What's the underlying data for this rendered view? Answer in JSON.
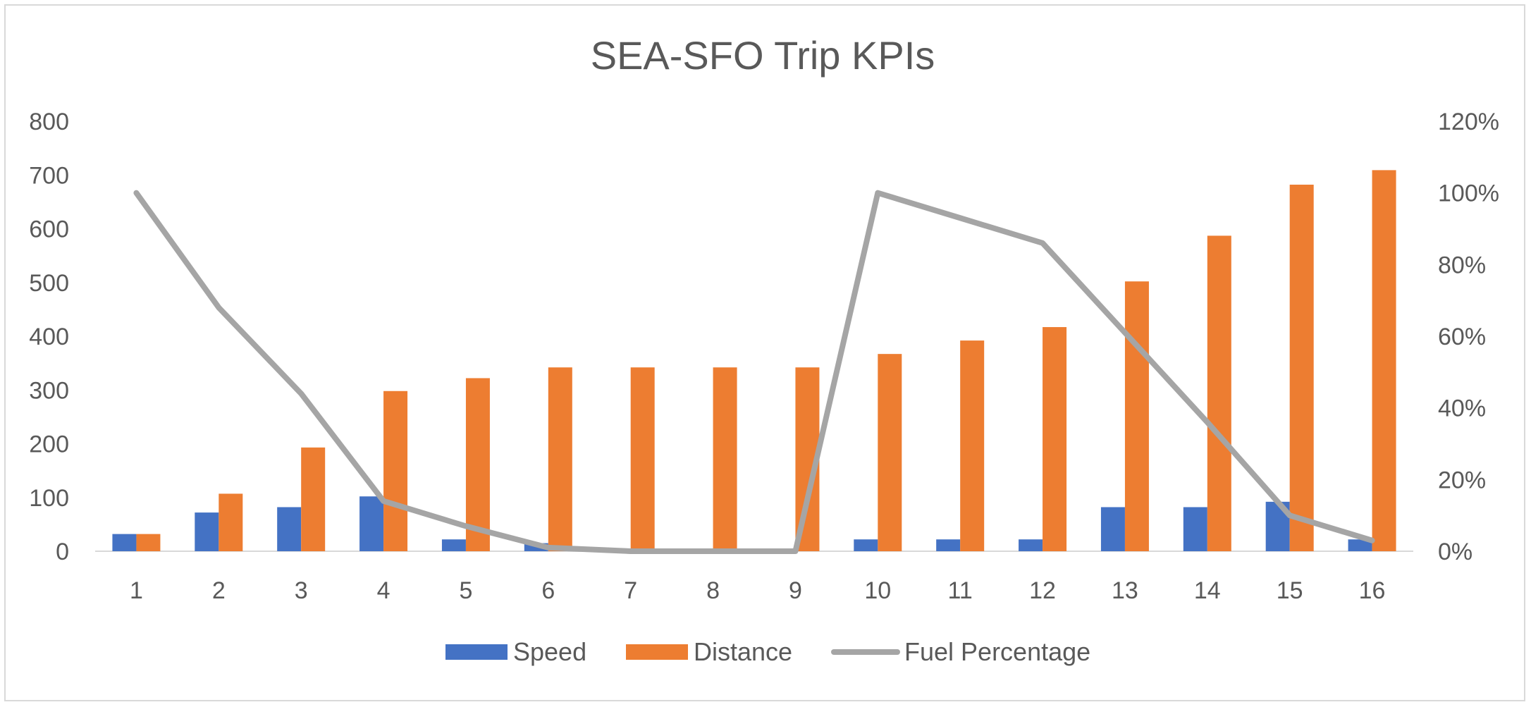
{
  "chart_data": {
    "type": "bar",
    "title": "SEA-SFO Trip KPIs",
    "categories": [
      "1",
      "2",
      "3",
      "4",
      "5",
      "6",
      "7",
      "8",
      "9",
      "10",
      "11",
      "12",
      "13",
      "14",
      "15",
      "16"
    ],
    "series": [
      {
        "name": "Speed",
        "type": "bar",
        "axis": "left",
        "color": "#4472C4",
        "values": [
          32,
          72,
          82,
          102,
          22,
          15,
          0,
          0,
          0,
          22,
          22,
          22,
          82,
          82,
          92,
          22
        ]
      },
      {
        "name": "Distance",
        "type": "bar",
        "axis": "left",
        "color": "#ED7D31",
        "values": [
          32,
          107,
          193,
          298,
          322,
          342,
          342,
          342,
          342,
          367,
          392,
          417,
          502,
          587,
          682,
          709
        ]
      },
      {
        "name": "Fuel Percentage",
        "type": "line",
        "axis": "right",
        "color": "#A5A5A5",
        "values": [
          1.0,
          0.68,
          0.44,
          0.14,
          0.07,
          0.01,
          0.0,
          0.0,
          0.0,
          1.0,
          0.93,
          0.86,
          0.61,
          0.36,
          0.1,
          0.03
        ]
      }
    ],
    "y_left": {
      "lim": [
        0,
        800
      ],
      "ticks": [
        0,
        100,
        200,
        300,
        400,
        500,
        600,
        700,
        800
      ],
      "tick_labels": [
        "0",
        "100",
        "200",
        "300",
        "400",
        "500",
        "600",
        "700",
        "800"
      ]
    },
    "y_right": {
      "lim": [
        0,
        1.2
      ],
      "ticks": [
        0,
        0.2,
        0.4,
        0.6,
        0.8,
        1.0,
        1.2
      ],
      "tick_labels": [
        "0%",
        "20%",
        "40%",
        "60%",
        "80%",
        "100%",
        "120%"
      ]
    },
    "grid": false,
    "legend_position": "bottom"
  }
}
